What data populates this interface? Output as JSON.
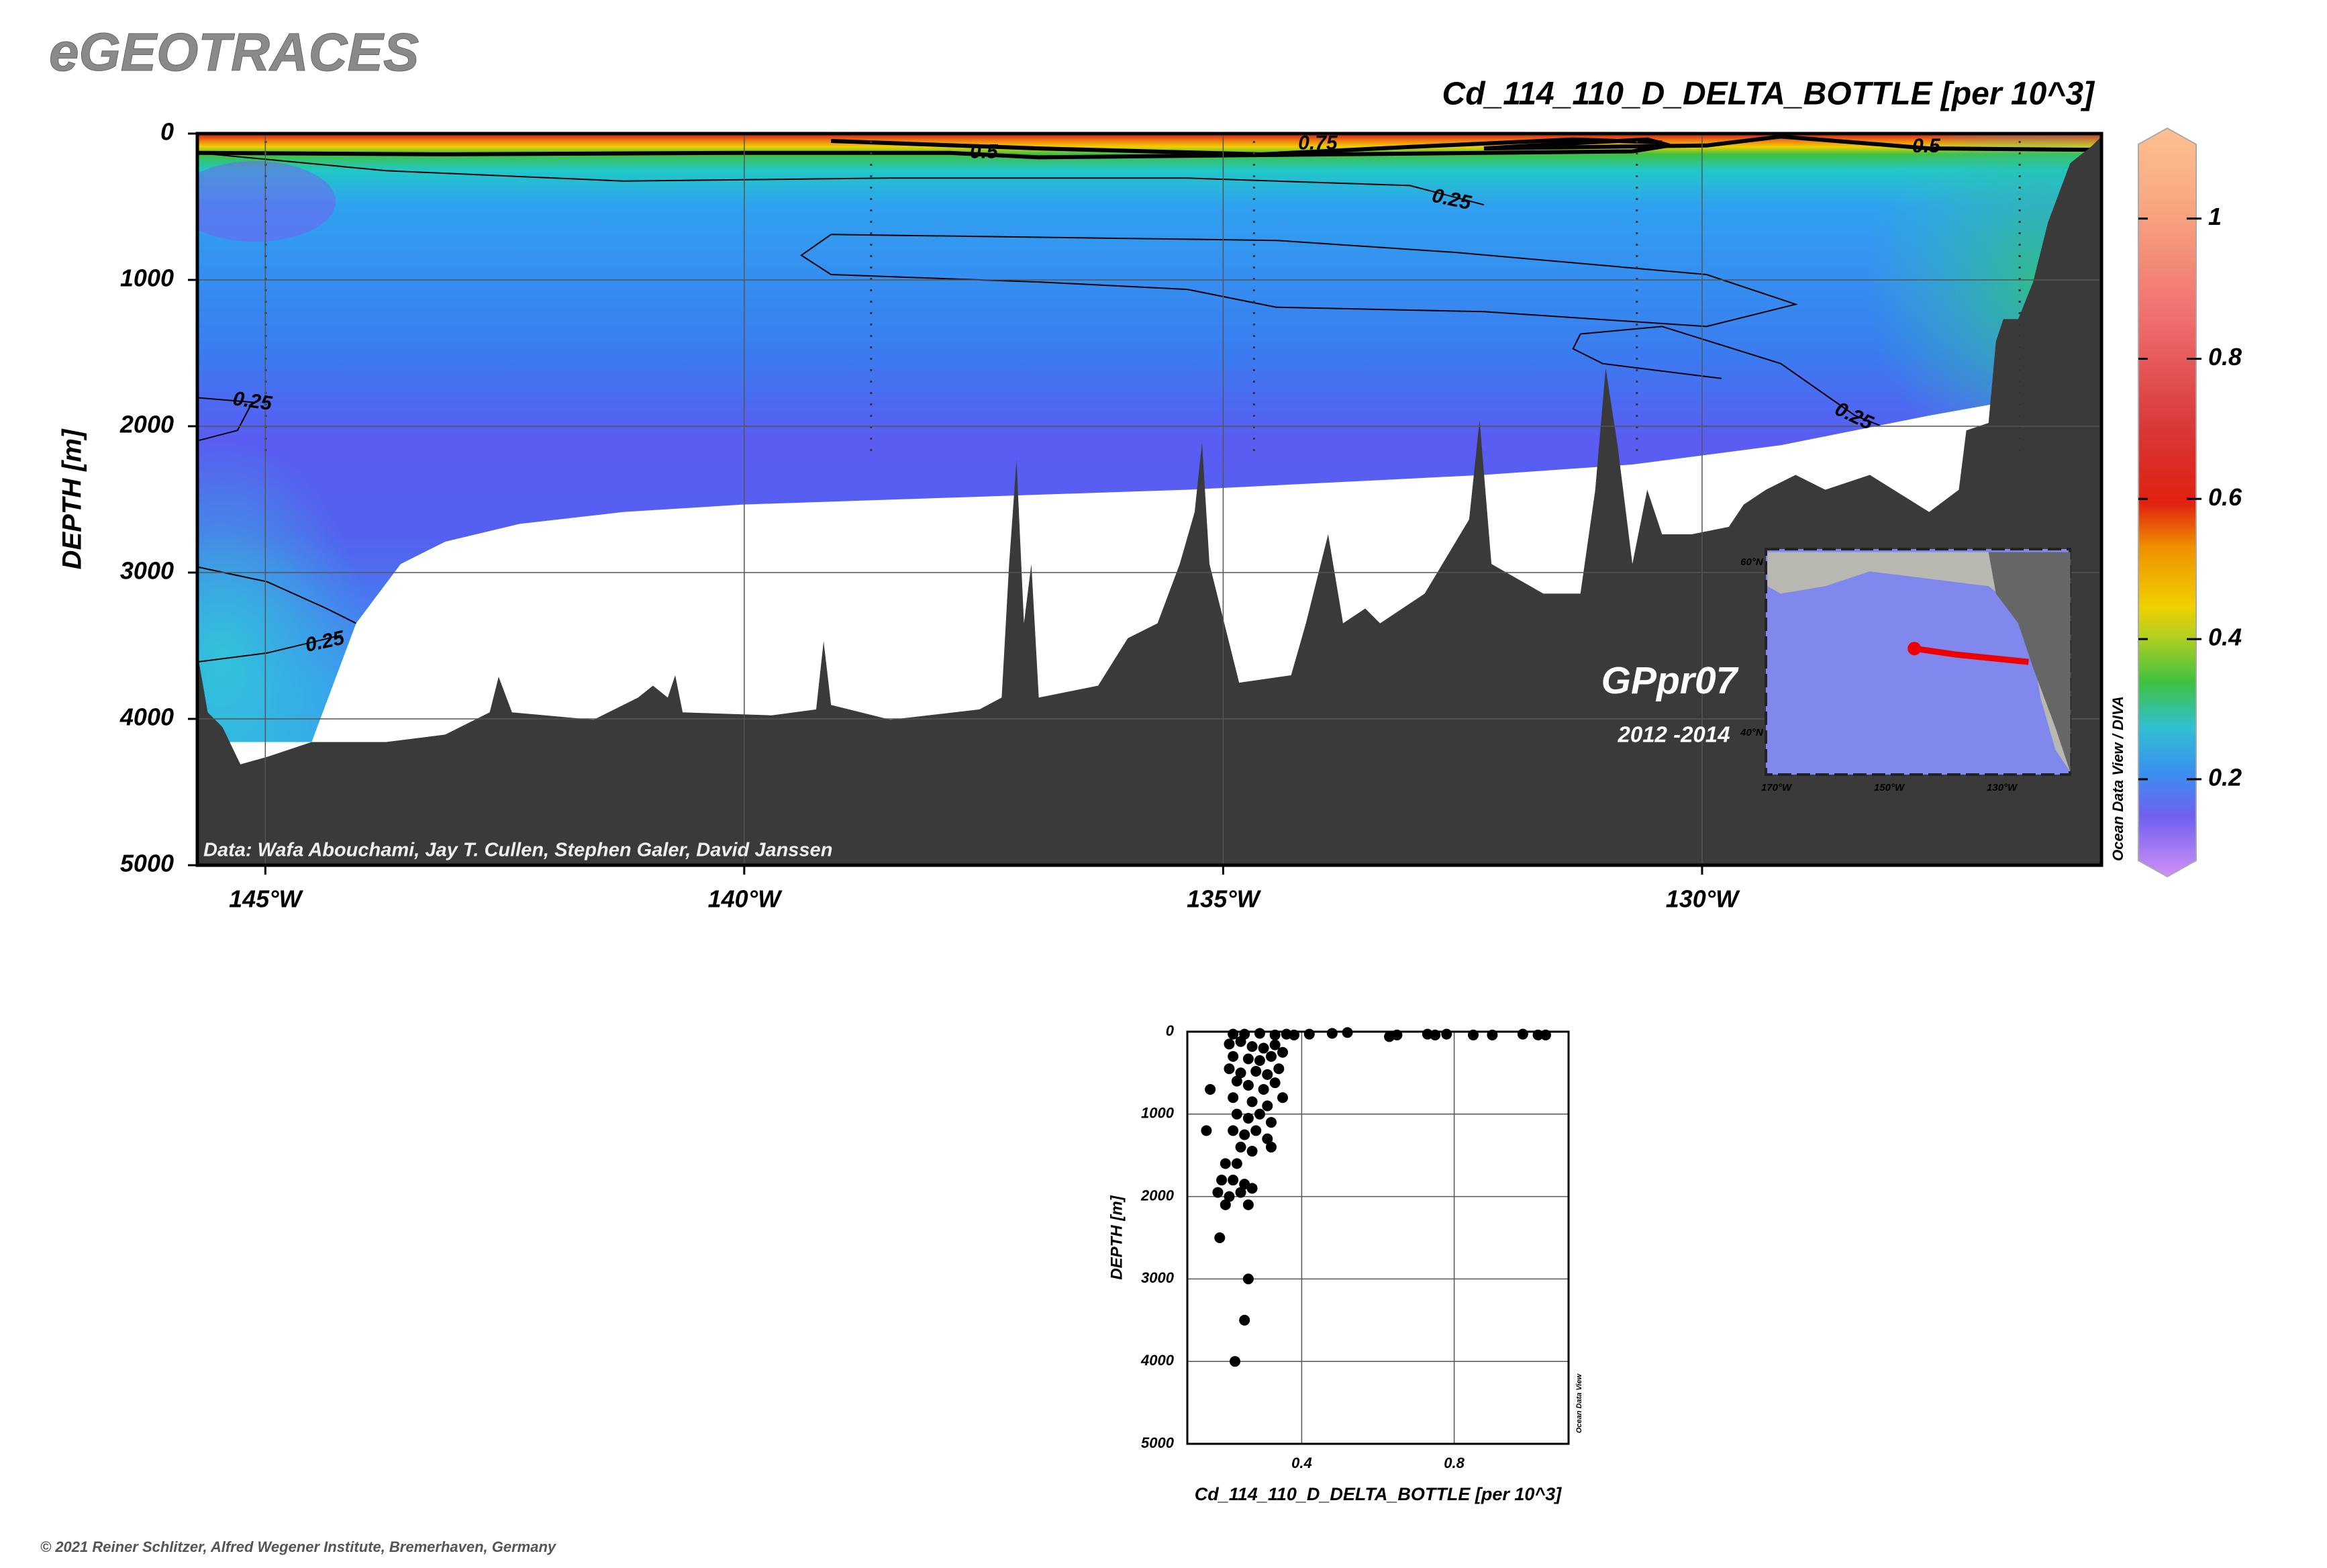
{
  "header": {
    "title": "eGEOTRACES"
  },
  "footer": {
    "copyright": "© 2021 Reiner Schlitzer, Alfred Wegener Institute, Bremerhaven, Germany"
  },
  "chart_data": [
    {
      "type": "contour",
      "title": "Cd_114_110_D_DELTA_BOTTLE [per 10^3]",
      "ylabel": "DEPTH [m]",
      "xlim": [
        -145.71,
        -125.83
      ],
      "xticks": [
        {
          "value": -145,
          "label": "145°W"
        },
        {
          "value": -140,
          "label": "140°W"
        },
        {
          "value": -135,
          "label": "135°W"
        },
        {
          "value": -130,
          "label": "130°W"
        }
      ],
      "ylim": [
        5000,
        0
      ],
      "yticks": [
        0,
        1000,
        2000,
        3000,
        4000,
        5000
      ],
      "grid": true,
      "colorbar": {
        "lim": [
          0.084,
          1.106
        ],
        "ticks": [
          0.2,
          0.4,
          0.6,
          0.8,
          1
        ]
      },
      "contour_labels": [
        "0.5",
        "0.75",
        "0.25",
        "0.5",
        "0.25",
        "0.25",
        "0.25"
      ],
      "section_name": "GPpr07",
      "years": "2012 -2014",
      "credit": "Data: Wafa Abouchami, Jay T. Cullen, Stephen Galer, David Janssen",
      "software": "Ocean Data View / DIVA",
      "inset_map": {
        "lat_labels": [
          "60°N",
          "40°N"
        ],
        "lon_labels": [
          "170°W",
          "150°W",
          "130°W"
        ]
      }
    },
    {
      "type": "scatter",
      "xlabel": "Cd_114_110_D_DELTA_BOTTLE [per 10^3]",
      "ylabel": "DEPTH [m]",
      "software": "Ocean Data View",
      "color": "#000000",
      "xlim": [
        0.1,
        1.1
      ],
      "xticks": [
        0.4,
        0.8
      ],
      "ylim": [
        5000,
        0
      ],
      "yticks": [
        0,
        1000,
        2000,
        3000,
        4000,
        5000
      ],
      "grid": true,
      "x": [
        0.22,
        0.25,
        0.29,
        0.33,
        0.36,
        0.38,
        0.42,
        0.48,
        0.52,
        0.63,
        0.65,
        0.73,
        0.75,
        0.78,
        0.85,
        0.9,
        0.98,
        1.02,
        1.04,
        0.21,
        0.24,
        0.27,
        0.3,
        0.33,
        0.35,
        0.22,
        0.26,
        0.29,
        0.32,
        0.21,
        0.24,
        0.28,
        0.31,
        0.34,
        0.23,
        0.26,
        0.3,
        0.33,
        0.35,
        0.16,
        0.22,
        0.27,
        0.31,
        0.23,
        0.26,
        0.29,
        0.32,
        0.15,
        0.22,
        0.25,
        0.28,
        0.31,
        0.24,
        0.27,
        0.32,
        0.2,
        0.23,
        0.19,
        0.22,
        0.25,
        0.18,
        0.21,
        0.24,
        0.27,
        0.2,
        0.26,
        0.185,
        0.26,
        0.25,
        0.225
      ],
      "values": [
        30,
        30,
        20,
        40,
        30,
        40,
        30,
        20,
        10,
        60,
        40,
        30,
        40,
        30,
        40,
        40,
        30,
        40,
        40,
        150,
        120,
        180,
        200,
        160,
        250,
        300,
        330,
        350,
        300,
        450,
        500,
        480,
        520,
        450,
        600,
        650,
        700,
        620,
        800,
        700,
        800,
        850,
        900,
        1000,
        1050,
        1000,
        1100,
        1200,
        1200,
        1250,
        1200,
        1300,
        1400,
        1450,
        1400,
        1600,
        1600,
        1800,
        1800,
        1850,
        1950,
        2000,
        1950,
        1900,
        2100,
        2100,
        2500,
        3000,
        3500,
        4000
      ]
    }
  ]
}
